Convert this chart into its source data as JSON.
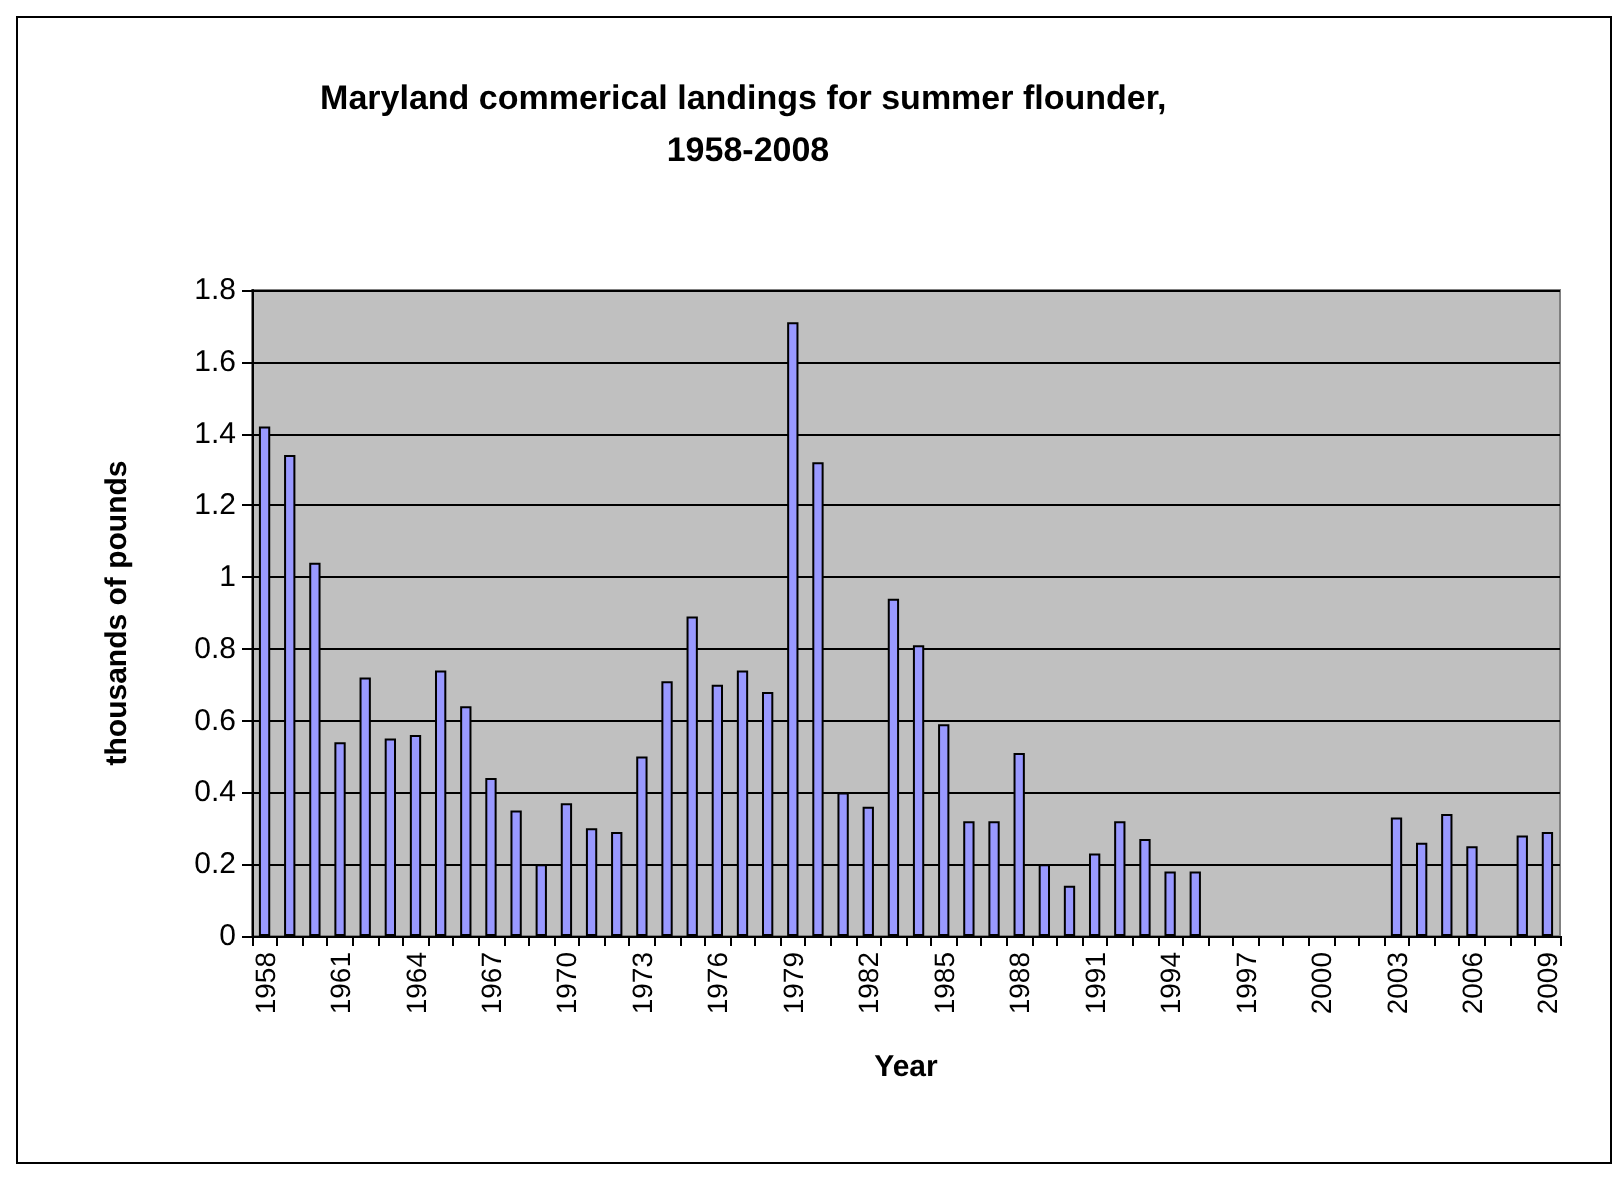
{
  "chart_data": {
    "type": "bar",
    "title": "Maryland commerical landings for summer flounder, 1958-2008",
    "xlabel": "Year",
    "ylabel": "thousands of pounds",
    "categories": [
      "1958",
      null,
      null,
      "1961",
      null,
      null,
      "1964",
      null,
      null,
      "1967",
      null,
      null,
      "1970",
      null,
      null,
      "1973",
      null,
      null,
      "1976",
      null,
      null,
      "1979",
      null,
      null,
      "1982",
      null,
      null,
      "1985",
      null,
      null,
      "1988",
      null,
      null,
      "1991",
      null,
      null,
      "1994",
      null,
      null,
      "1997",
      null,
      null,
      "2000",
      null,
      null,
      "2003",
      null,
      null,
      "2006",
      null,
      null,
      "2009"
    ],
    "values": [
      1.42,
      1.34,
      1.04,
      0.54,
      0.72,
      0.55,
      0.56,
      0.74,
      0.64,
      0.44,
      0.35,
      0.2,
      0.37,
      0.3,
      0.29,
      0.5,
      0.71,
      0.89,
      0.7,
      0.74,
      0.68,
      1.71,
      1.32,
      0.4,
      0.36,
      0.94,
      0.81,
      0.59,
      0.32,
      0.32,
      0.51,
      0.2,
      0.14,
      0.23,
      0.32,
      0.27,
      0.18,
      0.18,
      null,
      null,
      null,
      null,
      null,
      null,
      null,
      0.33,
      0.26,
      0.34,
      0.25,
      null,
      0.28,
      0.29
    ],
    "color": "#9999ff",
    "ylim": [
      0,
      1.8
    ],
    "yticks": [
      0,
      0.2,
      0.4,
      0.6,
      0.8,
      1,
      1.2,
      1.4,
      1.6,
      1.8
    ],
    "grid": "y"
  }
}
